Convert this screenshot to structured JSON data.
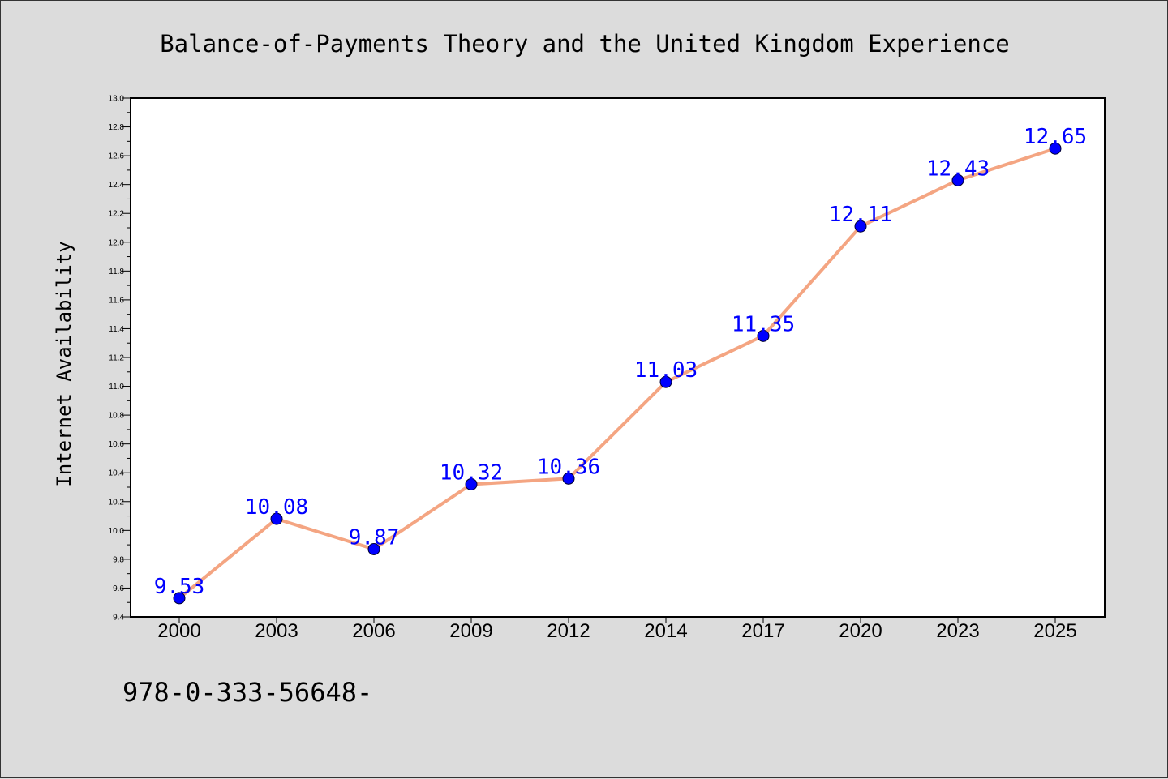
{
  "footer_text": "978-0-333-56648-",
  "chart_data": {
    "type": "line",
    "title": "Balance-of-Payments Theory and the United Kingdom Experience",
    "xlabel": "",
    "ylabel": "Internet Availability",
    "categories": [
      "2000",
      "2003",
      "2006",
      "2009",
      "2012",
      "2014",
      "2017",
      "2020",
      "2023",
      "2025"
    ],
    "series": [
      {
        "values": [
          9.53,
          10.08,
          9.87,
          10.32,
          10.36,
          11.03,
          11.35,
          12.11,
          12.43,
          12.65
        ],
        "labels": [
          "9.53",
          "10.08",
          "9.87",
          "10.32",
          "10.36",
          "11.03",
          "11.35",
          "12.11",
          "12.43",
          "12.65"
        ],
        "line_color": "#f4a582",
        "marker_color": "#0000ff",
        "label_color": "#0000ff"
      }
    ],
    "ylim": [
      9.4,
      13.0
    ],
    "yticks": [
      "9.4",
      "9.6",
      "9.8",
      "10.0",
      "10.2",
      "10.4",
      "10.6",
      "10.8",
      "11.0",
      "11.2",
      "11.4",
      "11.6",
      "11.8",
      "12.0",
      "12.2",
      "12.4",
      "12.6",
      "12.8",
      "13.0"
    ],
    "grid": false,
    "legend": "none",
    "plot_background": "#ffffff",
    "page_background": "#dcdcdc"
  }
}
